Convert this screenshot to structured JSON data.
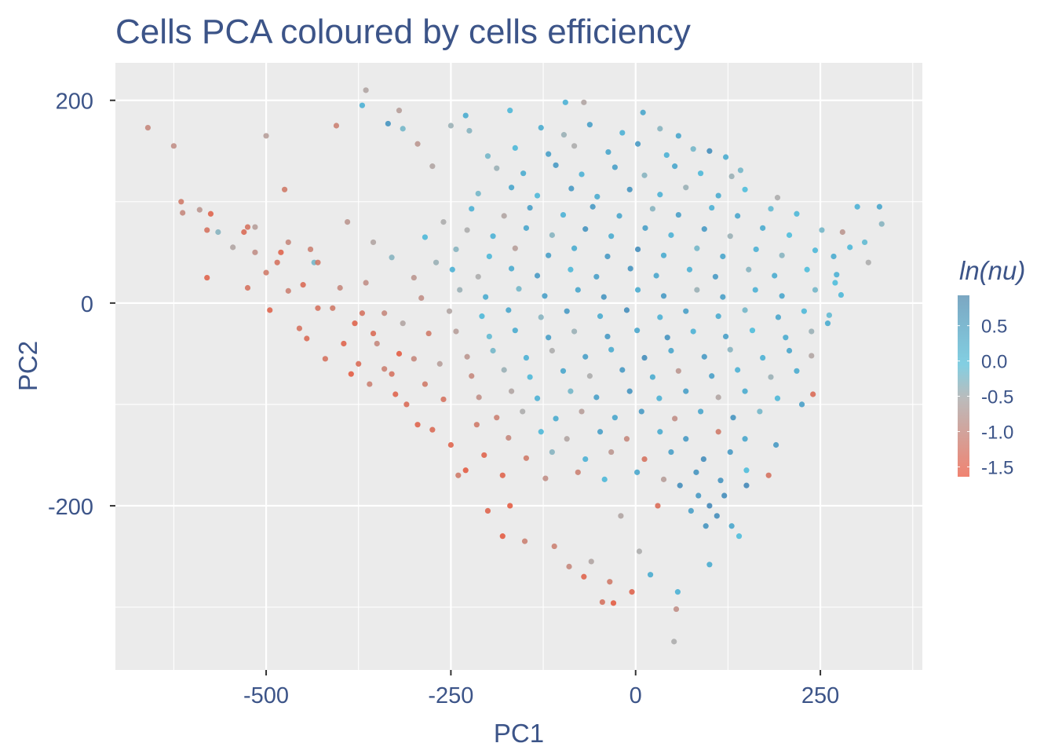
{
  "chart_data": {
    "type": "scatter",
    "title": "Cells PCA coloured by cells efficiency",
    "xlabel": "PC1",
    "ylabel": "PC2",
    "xlim": [
      -704,
      388
    ],
    "ylim": [
      -362,
      237
    ],
    "x_ticks": [
      -500,
      -250,
      0,
      250
    ],
    "x_tick_labels": [
      "-500",
      "-250",
      "0",
      "250"
    ],
    "y_ticks": [
      -200,
      0,
      200
    ],
    "y_tick_labels": [
      "-200",
      "0",
      "200"
    ],
    "grid": true,
    "legend": {
      "title": "ln(nu)",
      "placement": "right",
      "type": "colorbar",
      "range": [
        -1.64,
        0.93
      ],
      "ticks": [
        0.5,
        0.0,
        -0.5,
        -1.0,
        -1.5
      ],
      "tick_labels": [
        "0.5",
        "0.0",
        "-0.5",
        "-1.0",
        "-1.5"
      ]
    },
    "color_scale": [
      {
        "value": -1.6,
        "color": "#e3553a"
      },
      {
        "value": -0.5,
        "color": "#a9a9a9"
      },
      {
        "value": 0.0,
        "color": "#45bbdb"
      },
      {
        "value": 0.9,
        "color": "#3a82b5"
      }
    ],
    "point_format": [
      "PC1",
      "PC2",
      "ln(nu)"
    ],
    "points": [
      [
        -660,
        173,
        -1.0
      ],
      [
        -625,
        155,
        -0.9
      ],
      [
        -615,
        100,
        -1.2
      ],
      [
        -613,
        89,
        -1.0
      ],
      [
        -590,
        92,
        -0.8
      ],
      [
        -580,
        72,
        -1.3
      ],
      [
        -575,
        88,
        -1.5
      ],
      [
        -565,
        70,
        -0.3
      ],
      [
        -580,
        25,
        -1.5
      ],
      [
        -545,
        55,
        -0.6
      ],
      [
        -530,
        70,
        -1.4
      ],
      [
        -525,
        75,
        -1.3
      ],
      [
        -515,
        75,
        -0.7
      ],
      [
        -525,
        15,
        -1.3
      ],
      [
        -515,
        50,
        -0.9
      ],
      [
        -500,
        165,
        -0.7
      ],
      [
        -500,
        30,
        -1.2
      ],
      [
        -495,
        -7,
        -1.5
      ],
      [
        -485,
        40,
        -1.3
      ],
      [
        -480,
        50,
        -1.5
      ],
      [
        -475,
        112,
        -1.2
      ],
      [
        -470,
        60,
        -1.0
      ],
      [
        -470,
        12,
        -1.1
      ],
      [
        -455,
        -25,
        -1.3
      ],
      [
        -450,
        18,
        -1.4
      ],
      [
        -445,
        -35,
        -1.4
      ],
      [
        -440,
        53,
        -1.1
      ],
      [
        -435,
        40,
        -0.2
      ],
      [
        -430,
        40,
        -1.2
      ],
      [
        -430,
        -5,
        -1.3
      ],
      [
        -410,
        -5,
        -1.2
      ],
      [
        -405,
        175,
        -1.1
      ],
      [
        -400,
        15,
        -1.0
      ],
      [
        -395,
        -40,
        -1.5
      ],
      [
        -390,
        80,
        -0.8
      ],
      [
        -385,
        -70,
        -1.6
      ],
      [
        -380,
        -20,
        -1.5
      ],
      [
        -375,
        -60,
        -1.4
      ],
      [
        -370,
        -10,
        -1.3
      ],
      [
        -365,
        20,
        -0.9
      ],
      [
        -360,
        -80,
        -1.1
      ],
      [
        -355,
        60,
        -0.6
      ],
      [
        -350,
        -40,
        -1.0
      ],
      [
        -340,
        -65,
        -1.1
      ],
      [
        -330,
        -70,
        -1.3
      ],
      [
        -325,
        -90,
        -1.5
      ],
      [
        -320,
        -50,
        -1.6
      ],
      [
        -310,
        -100,
        -1.4
      ],
      [
        -300,
        -55,
        -1.0
      ],
      [
        -295,
        -120,
        -1.5
      ],
      [
        -285,
        -80,
        -1.2
      ],
      [
        -275,
        -125,
        -1.4
      ],
      [
        -260,
        -95,
        -1.3
      ],
      [
        -250,
        -140,
        -1.5
      ],
      [
        -240,
        -170,
        -1.2
      ],
      [
        -230,
        -165,
        -1.6
      ],
      [
        -215,
        -120,
        -1.2
      ],
      [
        -205,
        -150,
        -1.5
      ],
      [
        -180,
        -170,
        -1.5
      ],
      [
        -170,
        -200,
        -1.6
      ],
      [
        -315,
        -20,
        -0.6
      ],
      [
        -290,
        5,
        -0.9
      ],
      [
        -280,
        -30,
        -1.2
      ],
      [
        -270,
        40,
        -0.4
      ],
      [
        -265,
        -60,
        -0.7
      ],
      [
        -300,
        25,
        -0.8
      ],
      [
        -340,
        -10,
        -1.0
      ],
      [
        -355,
        -30,
        -1.4
      ],
      [
        -420,
        -55,
        -1.3
      ],
      [
        -330,
        45,
        -0.3
      ],
      [
        -285,
        65,
        0.1
      ],
      [
        -260,
        80,
        -0.5
      ],
      [
        -370,
        195,
        0.2
      ],
      [
        -365,
        210,
        -0.6
      ],
      [
        -335,
        177,
        0.7
      ],
      [
        -320,
        190,
        -0.7
      ],
      [
        -315,
        172,
        -0.2
      ],
      [
        -295,
        157,
        -0.8
      ],
      [
        -275,
        135,
        -0.6
      ],
      [
        -250,
        175,
        -0.4
      ],
      [
        -230,
        185,
        0.3
      ],
      [
        -225,
        170,
        -0.3
      ],
      [
        -200,
        145,
        -0.2
      ],
      [
        -170,
        190,
        0.1
      ],
      [
        -95,
        198,
        0.2
      ],
      [
        -70,
        198,
        -0.6
      ],
      [
        10,
        188,
        0.4
      ],
      [
        100,
        150,
        0.8
      ],
      [
        130,
        125,
        -0.4
      ],
      [
        300,
        95,
        0.2
      ],
      [
        310,
        60,
        -0.1
      ],
      [
        330,
        95,
        0.4
      ],
      [
        333,
        78,
        -0.3
      ],
      [
        315,
        40,
        -0.5
      ],
      [
        280,
        70,
        -0.8
      ],
      [
        290,
        55,
        0.1
      ],
      [
        270,
        20,
        0.0
      ],
      [
        260,
        -20,
        0.3
      ],
      [
        240,
        -90,
        -1.4
      ],
      [
        225,
        -100,
        0.5
      ],
      [
        190,
        -140,
        0.6
      ],
      [
        150,
        -165,
        0.0
      ],
      [
        180,
        -170,
        -1.3
      ],
      [
        -200,
        -205,
        -1.5
      ],
      [
        -180,
        -230,
        -1.6
      ],
      [
        -150,
        -235,
        -1.1
      ],
      [
        -110,
        -240,
        -1.1
      ],
      [
        -90,
        -260,
        -1.0
      ],
      [
        -70,
        -270,
        -1.5
      ],
      [
        -60,
        -255,
        -0.6
      ],
      [
        -45,
        -295,
        -1.3
      ],
      [
        -35,
        -275,
        -1.2
      ],
      [
        -30,
        -296,
        -1.6
      ],
      [
        -5,
        -285,
        -1.5
      ],
      [
        5,
        -245,
        -0.5
      ],
      [
        20,
        -268,
        0.3
      ],
      [
        55,
        -302,
        -0.9
      ],
      [
        52,
        -334,
        -0.5
      ],
      [
        57,
        -285,
        0.2
      ],
      [
        100,
        -258,
        0.3
      ],
      [
        30,
        -200,
        -1.4
      ],
      [
        -20,
        -210,
        -0.6
      ],
      [
        60,
        -180,
        0.8
      ],
      [
        100,
        -200,
        0.9
      ],
      [
        110,
        -210,
        0.8
      ],
      [
        120,
        -190,
        0.8
      ],
      [
        130,
        -220,
        0.4
      ],
      [
        95,
        -220,
        0.7
      ],
      [
        140,
        -230,
        0.0
      ],
      [
        150,
        -180,
        0.9
      ],
      [
        85,
        -190,
        0.6
      ],
      [
        115,
        -175,
        0.7
      ],
      [
        75,
        -205,
        0.5
      ],
      [
        -128,
        173,
        0.3
      ],
      [
        -97,
        166,
        -0.4
      ],
      [
        -62,
        176,
        0.5
      ],
      [
        -18,
        168,
        0.2
      ],
      [
        33,
        172,
        -0.3
      ],
      [
        58,
        165,
        0.4
      ],
      [
        -163,
        153,
        0.1
      ],
      [
        -118,
        147,
        0.5
      ],
      [
        -83,
        155,
        -0.5
      ],
      [
        -37,
        149,
        0.4
      ],
      [
        3,
        157,
        0.6
      ],
      [
        42,
        146,
        0.2
      ],
      [
        78,
        152,
        -0.2
      ],
      [
        122,
        144,
        0.3
      ],
      [
        -188,
        133,
        -0.4
      ],
      [
        -152,
        128,
        0.3
      ],
      [
        -108,
        136,
        0.6
      ],
      [
        -73,
        127,
        0.2
      ],
      [
        -28,
        134,
        0.5
      ],
      [
        12,
        126,
        -0.3
      ],
      [
        53,
        135,
        0.4
      ],
      [
        88,
        128,
        0.1
      ],
      [
        142,
        131,
        -0.2
      ],
      [
        -213,
        108,
        -0.2
      ],
      [
        -168,
        114,
        0.4
      ],
      [
        -133,
        106,
        0.1
      ],
      [
        -87,
        113,
        0.6
      ],
      [
        -52,
        105,
        0.3
      ],
      [
        -8,
        112,
        0.7
      ],
      [
        33,
        107,
        0.2
      ],
      [
        68,
        114,
        -0.4
      ],
      [
        112,
        106,
        0.3
      ],
      [
        148,
        112,
        0.0
      ],
      [
        192,
        104,
        -0.5
      ],
      [
        -222,
        93,
        0.2
      ],
      [
        -178,
        86,
        -0.6
      ],
      [
        -143,
        94,
        0.5
      ],
      [
        -98,
        87,
        0.2
      ],
      [
        -58,
        95,
        0.6
      ],
      [
        -22,
        86,
        0.4
      ],
      [
        23,
        93,
        -0.3
      ],
      [
        58,
        87,
        0.5
      ],
      [
        103,
        94,
        0.2
      ],
      [
        138,
        86,
        0.4
      ],
      [
        183,
        93,
        -0.1
      ],
      [
        218,
        88,
        0.1
      ],
      [
        -228,
        72,
        -0.5
      ],
      [
        -193,
        66,
        0.2
      ],
      [
        -148,
        74,
        0.4
      ],
      [
        -113,
        67,
        -0.3
      ],
      [
        -68,
        73,
        0.7
      ],
      [
        -33,
        66,
        0.3
      ],
      [
        13,
        74,
        0.5
      ],
      [
        48,
        67,
        0.2
      ],
      [
        93,
        73,
        0.6
      ],
      [
        128,
        66,
        -0.4
      ],
      [
        172,
        74,
        0.3
      ],
      [
        208,
        67,
        0.0
      ],
      [
        252,
        72,
        -0.2
      ],
      [
        -243,
        53,
        -0.3
      ],
      [
        -198,
        46,
        0.1
      ],
      [
        -163,
        54,
        -0.7
      ],
      [
        -118,
        47,
        0.5
      ],
      [
        -83,
        54,
        0.3
      ],
      [
        -38,
        46,
        0.6
      ],
      [
        3,
        53,
        0.8
      ],
      [
        38,
        47,
        0.3
      ],
      [
        83,
        54,
        -0.2
      ],
      [
        118,
        46,
        0.4
      ],
      [
        163,
        53,
        0.2
      ],
      [
        198,
        47,
        -0.3
      ],
      [
        243,
        52,
        0.1
      ],
      [
        268,
        46,
        0.3
      ],
      [
        -248,
        33,
        0.2
      ],
      [
        -213,
        26,
        -0.5
      ],
      [
        -168,
        34,
        0.3
      ],
      [
        -133,
        27,
        0.6
      ],
      [
        -88,
        33,
        0.1
      ],
      [
        -53,
        26,
        0.5
      ],
      [
        -7,
        34,
        0.7
      ],
      [
        28,
        27,
        0.4
      ],
      [
        73,
        33,
        0.2
      ],
      [
        108,
        26,
        0.6
      ],
      [
        153,
        33,
        -0.3
      ],
      [
        188,
        27,
        0.3
      ],
      [
        232,
        33,
        0.0
      ],
      [
        272,
        28,
        0.2
      ],
      [
        -238,
        13,
        -0.4
      ],
      [
        -203,
        6,
        0.3
      ],
      [
        -158,
        14,
        -0.2
      ],
      [
        -123,
        7,
        0.5
      ],
      [
        -78,
        13,
        0.4
      ],
      [
        -43,
        6,
        0.7
      ],
      [
        3,
        13,
        0.3
      ],
      [
        38,
        7,
        0.6
      ],
      [
        83,
        13,
        -0.4
      ],
      [
        118,
        6,
        0.5
      ],
      [
        162,
        13,
        0.2
      ],
      [
        198,
        7,
        0.4
      ],
      [
        243,
        13,
        -0.2
      ],
      [
        278,
        8,
        0.1
      ],
      [
        -252,
        -8,
        -0.6
      ],
      [
        -208,
        -13,
        0.1
      ],
      [
        -172,
        -7,
        0.4
      ],
      [
        -128,
        -14,
        -0.3
      ],
      [
        -93,
        -8,
        0.6
      ],
      [
        -48,
        -13,
        0.3
      ],
      [
        -12,
        -7,
        0.8
      ],
      [
        33,
        -14,
        0.2
      ],
      [
        68,
        -8,
        0.5
      ],
      [
        112,
        -13,
        0.3
      ],
      [
        148,
        -7,
        -0.2
      ],
      [
        193,
        -14,
        0.4
      ],
      [
        228,
        -8,
        0.1
      ],
      [
        262,
        -12,
        -0.1
      ],
      [
        -243,
        -28,
        -0.7
      ],
      [
        -198,
        -33,
        -0.1
      ],
      [
        -163,
        -27,
        0.3
      ],
      [
        -118,
        -34,
        0.5
      ],
      [
        -83,
        -28,
        -0.4
      ],
      [
        -38,
        -33,
        0.6
      ],
      [
        2,
        -27,
        0.4
      ],
      [
        43,
        -34,
        0.7
      ],
      [
        78,
        -28,
        0.2
      ],
      [
        122,
        -33,
        0.5
      ],
      [
        158,
        -27,
        0.0
      ],
      [
        203,
        -34,
        0.3
      ],
      [
        238,
        -28,
        -0.4
      ],
      [
        -228,
        -53,
        -0.8
      ],
      [
        -193,
        -47,
        -0.2
      ],
      [
        -148,
        -54,
        0.2
      ],
      [
        -113,
        -47,
        -0.5
      ],
      [
        -68,
        -53,
        0.5
      ],
      [
        -33,
        -46,
        0.3
      ],
      [
        12,
        -54,
        0.8
      ],
      [
        48,
        -47,
        0.4
      ],
      [
        93,
        -53,
        0.6
      ],
      [
        128,
        -46,
        -0.3
      ],
      [
        172,
        -54,
        0.2
      ],
      [
        208,
        -47,
        0.4
      ],
      [
        238,
        -52,
        -0.6
      ],
      [
        -222,
        -72,
        -1.0
      ],
      [
        -178,
        -66,
        -0.4
      ],
      [
        -143,
        -73,
        0.1
      ],
      [
        -98,
        -67,
        0.4
      ],
      [
        -62,
        -72,
        -0.5
      ],
      [
        -18,
        -66,
        0.6
      ],
      [
        23,
        -73,
        0.3
      ],
      [
        58,
        -67,
        -0.8
      ],
      [
        103,
        -72,
        0.5
      ],
      [
        138,
        -66,
        0.2
      ],
      [
        183,
        -73,
        -0.4
      ],
      [
        218,
        -67,
        0.3
      ],
      [
        -212,
        -93,
        -0.9
      ],
      [
        -168,
        -87,
        -0.6
      ],
      [
        -133,
        -94,
        0.2
      ],
      [
        -88,
        -87,
        -0.2
      ],
      [
        -53,
        -93,
        0.5
      ],
      [
        -8,
        -87,
        0.7
      ],
      [
        32,
        -94,
        0.2
      ],
      [
        68,
        -87,
        0.5
      ],
      [
        112,
        -93,
        -0.6
      ],
      [
        148,
        -87,
        0.3
      ],
      [
        192,
        -94,
        0.1
      ],
      [
        -188,
        -113,
        -1.1
      ],
      [
        -153,
        -107,
        -0.5
      ],
      [
        -108,
        -114,
        0.3
      ],
      [
        -73,
        -107,
        -0.7
      ],
      [
        -28,
        -113,
        0.4
      ],
      [
        8,
        -107,
        0.6
      ],
      [
        53,
        -114,
        -0.9
      ],
      [
        88,
        -107,
        0.4
      ],
      [
        132,
        -113,
        0.7
      ],
      [
        168,
        -107,
        -0.2
      ],
      [
        -172,
        -133,
        -1.0
      ],
      [
        -128,
        -127,
        0.1
      ],
      [
        -93,
        -134,
        -0.6
      ],
      [
        -48,
        -127,
        0.5
      ],
      [
        -12,
        -134,
        -1.0
      ],
      [
        33,
        -127,
        0.3
      ],
      [
        68,
        -134,
        0.6
      ],
      [
        112,
        -127,
        -1.2
      ],
      [
        148,
        -134,
        0.4
      ],
      [
        -148,
        -153,
        -1.2
      ],
      [
        -113,
        -147,
        -0.3
      ],
      [
        -68,
        -154,
        0.2
      ],
      [
        -33,
        -147,
        -0.8
      ],
      [
        12,
        -154,
        -1.3
      ],
      [
        48,
        -147,
        0.5
      ],
      [
        92,
        -154,
        0.8
      ],
      [
        128,
        -147,
        0.6
      ],
      [
        -122,
        -173,
        -0.9
      ],
      [
        -78,
        -167,
        -1.1
      ],
      [
        -42,
        -174,
        0.1
      ],
      [
        2,
        -167,
        0.4
      ],
      [
        38,
        -174,
        -0.7
      ],
      [
        82,
        -167,
        0.7
      ]
    ]
  }
}
